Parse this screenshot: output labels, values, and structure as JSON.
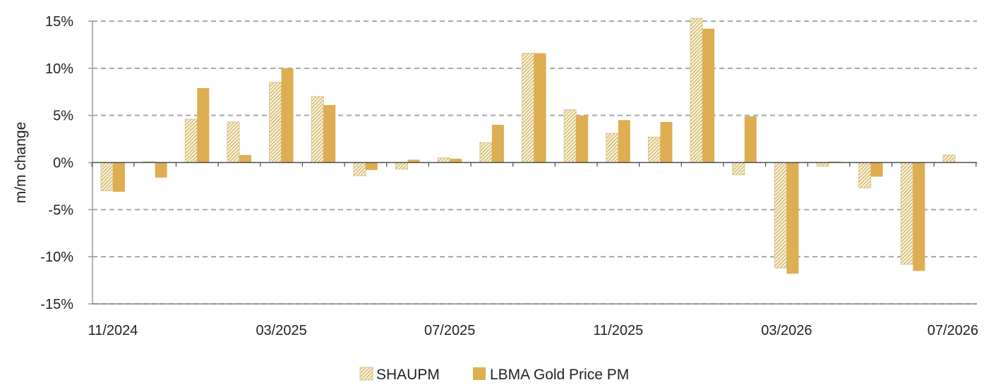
{
  "chart_data": {
    "type": "bar",
    "title": "",
    "xlabel": "",
    "ylabel": "m/m change",
    "ylim": [
      -15,
      15
    ],
    "yticks": [
      15,
      10,
      5,
      0,
      -5,
      -10,
      -15
    ],
    "ytick_labels": [
      "15%",
      "10%",
      "5%",
      "0%",
      "-5%",
      "-10%",
      "-15%"
    ],
    "categories": [
      "11/2024",
      "12/2024",
      "01/2025",
      "02/2025",
      "03/2025",
      "04/2025",
      "05/2025",
      "06/2025",
      "07/2025",
      "08/2025",
      "09/2025",
      "10/2025",
      "11/2025",
      "12/2025",
      "01/2026",
      "02/2026",
      "03/2026",
      "04/2026",
      "05/2026",
      "06/2026",
      "07/2026"
    ],
    "xtick_labels": [
      "11/2024",
      "03/2025",
      "07/2025",
      "11/2025",
      "03/2026",
      "07/2026"
    ],
    "grid": "horizontal-dashed",
    "legend_position": "bottom-center",
    "series": [
      {
        "name": "SHAUPM",
        "style": "hatched",
        "color": "#C9A94B",
        "values": [
          -3.0,
          0.1,
          4.6,
          4.3,
          8.5,
          7.0,
          -1.4,
          -0.7,
          0.5,
          2.1,
          11.6,
          5.6,
          3.1,
          2.7,
          15.3,
          -1.3,
          -11.2,
          -0.4,
          -2.7,
          -10.8,
          0.8
        ]
      },
      {
        "name": "LBMA Gold Price PM",
        "style": "solid",
        "color": "#DDAE52",
        "values": [
          -3.1,
          -1.6,
          7.9,
          0.8,
          10.0,
          6.1,
          -0.8,
          0.3,
          0.4,
          4.0,
          11.6,
          5.0,
          4.5,
          4.3,
          14.2,
          4.9,
          -11.8,
          0.1,
          -1.5,
          -11.5,
          null
        ]
      }
    ]
  }
}
